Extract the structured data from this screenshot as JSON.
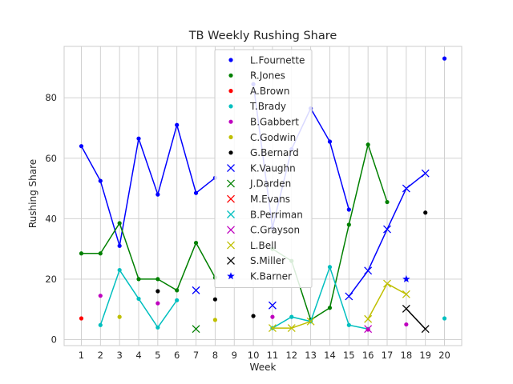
{
  "chart_data": {
    "type": "line",
    "title": "TB Weekly Rushing Share",
    "xlabel": "Week",
    "ylabel": "Rushing Share",
    "xlim": [
      0.1,
      20.9
    ],
    "ylim": [
      -2,
      97
    ],
    "x_ticks": [
      1,
      2,
      3,
      4,
      5,
      6,
      7,
      8,
      9,
      10,
      11,
      12,
      13,
      14,
      15,
      16,
      17,
      18,
      19,
      20
    ],
    "y_ticks": [
      0,
      20,
      40,
      60,
      80
    ],
    "grid": true,
    "legend_position": "upper-center",
    "series": [
      {
        "name": "L.Fournette",
        "color": "#0000ff",
        "marker": "dot",
        "segments": [
          [
            [
              1,
              64
            ],
            [
              2,
              52.5
            ],
            [
              3,
              31
            ],
            [
              4,
              66.5
            ],
            [
              5,
              48
            ],
            [
              6,
              71
            ],
            [
              7,
              48.5
            ],
            [
              8,
              53.5
            ]
          ],
          [
            [
              10,
              84.5
            ],
            [
              11,
              37
            ],
            [
              12,
              63
            ],
            [
              13,
              76.5
            ],
            [
              14,
              65.5
            ],
            [
              15,
              43
            ]
          ]
        ],
        "points": [
          [
            20,
            93
          ]
        ]
      },
      {
        "name": "R.Jones",
        "color": "#008000",
        "marker": "dot",
        "segments": [
          [
            [
              1,
              28.5
            ],
            [
              2,
              28.5
            ],
            [
              3,
              38.5
            ],
            [
              4,
              20
            ],
            [
              5,
              20
            ],
            [
              6,
              16.3
            ],
            [
              7,
              32
            ],
            [
              8,
              20.5
            ]
          ],
          [
            [
              11,
              30
            ],
            [
              12,
              26
            ],
            [
              13,
              6.5
            ],
            [
              14,
              10.5
            ],
            [
              15,
              38
            ],
            [
              16,
              64.5
            ],
            [
              17,
              45.5
            ]
          ]
        ],
        "points": []
      },
      {
        "name": "A.Brown",
        "color": "#ff0000",
        "marker": "dot",
        "segments": [],
        "points": [
          [
            1,
            7
          ]
        ]
      },
      {
        "name": "T.Brady",
        "color": "#00bfbf",
        "marker": "dot",
        "segments": [
          [
            [
              2,
              4.8
            ],
            [
              3,
              23
            ],
            [
              4,
              13.5
            ],
            [
              5,
              4
            ],
            [
              6,
              13
            ]
          ],
          [
            [
              11,
              3.8
            ],
            [
              12,
              7.5
            ],
            [
              13,
              6
            ],
            [
              14,
              24
            ],
            [
              15,
              4.8
            ],
            [
              16,
              3.5
            ]
          ]
        ],
        "points": [
          [
            20,
            7
          ]
        ]
      },
      {
        "name": "B.Gabbert",
        "color": "#bf00bf",
        "marker": "dot",
        "segments": [],
        "points": [
          [
            2,
            14.5
          ],
          [
            5,
            12
          ],
          [
            11,
            7.5
          ],
          [
            16,
            3.3
          ],
          [
            18,
            5
          ]
        ]
      },
      {
        "name": "C.Godwin",
        "color": "#bfbf00",
        "marker": "dot",
        "segments": [],
        "points": [
          [
            3,
            7.5
          ],
          [
            8,
            6.5
          ]
        ]
      },
      {
        "name": "G.Bernard",
        "color": "#000000",
        "marker": "dot",
        "segments": [],
        "points": [
          [
            5,
            16
          ],
          [
            8,
            13.3
          ],
          [
            10,
            7.8
          ],
          [
            19,
            42
          ]
        ]
      },
      {
        "name": "K.Vaughn",
        "color": "#0000ff",
        "marker": "x",
        "segments": [
          [
            [
              15,
              14.3
            ],
            [
              16,
              22.8
            ],
            [
              17,
              36.5
            ],
            [
              18,
              50
            ],
            [
              19,
              55
            ]
          ]
        ],
        "points": [
          [
            7,
            16.3
          ],
          [
            11,
            11.3
          ]
        ]
      },
      {
        "name": "J.Darden",
        "color": "#008000",
        "marker": "x",
        "segments": [],
        "points": [
          [
            7,
            3.5
          ]
        ]
      },
      {
        "name": "M.Evans",
        "color": "#ff0000",
        "marker": "x",
        "segments": [],
        "points": []
      },
      {
        "name": "B.Perriman",
        "color": "#00bfbf",
        "marker": "x",
        "segments": [],
        "points": []
      },
      {
        "name": "C.Grayson",
        "color": "#bf00bf",
        "marker": "x",
        "segments": [],
        "points": [
          [
            16,
            3.5
          ]
        ]
      },
      {
        "name": "L.Bell",
        "color": "#bfbf00",
        "marker": "x",
        "segments": [
          [
            [
              11,
              3.8
            ],
            [
              12,
              3.8
            ],
            [
              13,
              6
            ]
          ],
          [
            [
              16,
              6.8
            ],
            [
              17,
              18.5
            ],
            [
              18,
              15
            ]
          ]
        ],
        "points": []
      },
      {
        "name": "S.Miller",
        "color": "#000000",
        "marker": "x",
        "segments": [
          [
            [
              18,
              10.2
            ],
            [
              19,
              3.5
            ]
          ]
        ],
        "points": []
      },
      {
        "name": "K.Barner",
        "color": "#0000ff",
        "marker": "star",
        "segments": [],
        "points": [
          [
            18,
            20
          ]
        ]
      }
    ]
  }
}
